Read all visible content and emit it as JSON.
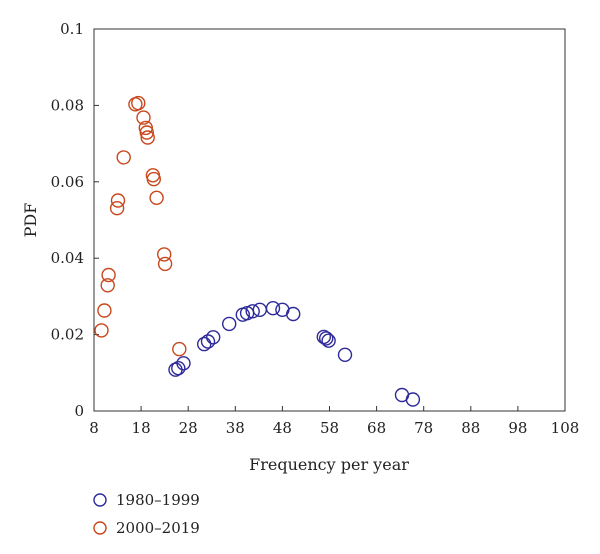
{
  "chart_data": {
    "type": "scatter",
    "xlabel": "Frequency per year",
    "ylabel": "PDF",
    "xlim": [
      8,
      108
    ],
    "ylim": [
      0,
      0.1
    ],
    "xticks": [
      "8",
      "18",
      "28",
      "38",
      "48",
      "58",
      "68",
      "78",
      "88",
      "98",
      "108"
    ],
    "yticks": [
      "0",
      "0.02",
      "0.04",
      "0.06",
      "0.08",
      "0.1"
    ],
    "grid": false,
    "legend": "bottom-left",
    "series": [
      {
        "name": "1980–1999",
        "color": "#2e2a9a",
        "points": [
          [
            25.3,
            0.0108
          ],
          [
            25.9,
            0.0112
          ],
          [
            27,
            0.0125
          ],
          [
            31.4,
            0.0175
          ],
          [
            32.2,
            0.0182
          ],
          [
            33.3,
            0.0193
          ],
          [
            36.7,
            0.0228
          ],
          [
            39.6,
            0.0252
          ],
          [
            40.5,
            0.0256
          ],
          [
            41.7,
            0.0261
          ],
          [
            43.2,
            0.0265
          ],
          [
            46,
            0.0269
          ],
          [
            48,
            0.0265
          ],
          [
            50.3,
            0.0254
          ],
          [
            56.8,
            0.0194
          ],
          [
            57.3,
            0.019
          ],
          [
            57.8,
            0.0184
          ],
          [
            61.3,
            0.0147
          ],
          [
            73.4,
            0.0042
          ],
          [
            75.7,
            0.003
          ]
        ]
      },
      {
        "name": "2000–2019",
        "color": "#c8471c",
        "points": [
          [
            9.6,
            0.0211
          ],
          [
            10.2,
            0.0263
          ],
          [
            10.9,
            0.0329
          ],
          [
            11.1,
            0.0356
          ],
          [
            12.9,
            0.0531
          ],
          [
            13.1,
            0.0551
          ],
          [
            14.3,
            0.0664
          ],
          [
            16.8,
            0.0803
          ],
          [
            17.4,
            0.0806
          ],
          [
            18.5,
            0.0768
          ],
          [
            19,
            0.0741
          ],
          [
            19.2,
            0.0729
          ],
          [
            19.4,
            0.0716
          ],
          [
            20.5,
            0.0617
          ],
          [
            20.7,
            0.0607
          ],
          [
            21.3,
            0.0558
          ],
          [
            22.9,
            0.041
          ],
          [
            23.1,
            0.0385
          ],
          [
            26.1,
            0.0162
          ]
        ]
      }
    ]
  }
}
